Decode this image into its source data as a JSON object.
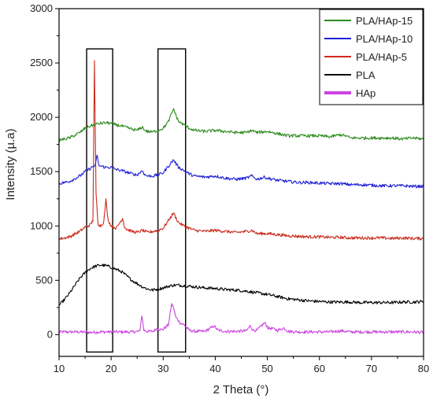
{
  "chart_data": {
    "type": "line",
    "title": "",
    "xlabel": "2 Theta (°)",
    "ylabel": "Intensity (µ.a)",
    "xlim": [
      10,
      80
    ],
    "ylim": [
      -200,
      3000
    ],
    "x_ticks": [
      10,
      20,
      30,
      40,
      50,
      60,
      70,
      80
    ],
    "y_ticks": [
      0,
      500,
      1000,
      1500,
      2000,
      2500,
      3000
    ],
    "legend_position": "top-right",
    "grid": false,
    "highlight_boxes": [
      {
        "x_range": [
          15.3,
          20.3
        ],
        "y_range": [
          -160,
          2630
        ]
      },
      {
        "x_range": [
          29.0,
          34.3
        ],
        "y_range": [
          -160,
          2630
        ]
      }
    ],
    "series": [
      {
        "name": "PLA/HAp-15",
        "color": "#2e8b1e",
        "points": [
          [
            10,
            1790
          ],
          [
            12,
            1810
          ],
          [
            14,
            1860
          ],
          [
            15,
            1900
          ],
          [
            16,
            1920
          ],
          [
            17,
            1935
          ],
          [
            18,
            1945
          ],
          [
            19,
            1950
          ],
          [
            20,
            1945
          ],
          [
            21,
            1930
          ],
          [
            22,
            1920
          ],
          [
            23,
            1905
          ],
          [
            24,
            1890
          ],
          [
            25,
            1880
          ],
          [
            26,
            1910
          ],
          [
            26.5,
            1880
          ],
          [
            27,
            1870
          ],
          [
            28,
            1865
          ],
          [
            29,
            1880
          ],
          [
            30,
            1900
          ],
          [
            31,
            1960
          ],
          [
            32,
            2080
          ],
          [
            32.5,
            2010
          ],
          [
            33,
            1960
          ],
          [
            34,
            1930
          ],
          [
            35,
            1900
          ],
          [
            36,
            1880
          ],
          [
            38,
            1870
          ],
          [
            40,
            1880
          ],
          [
            42,
            1870
          ],
          [
            44,
            1860
          ],
          [
            46,
            1860
          ],
          [
            47,
            1880
          ],
          [
            48,
            1860
          ],
          [
            50,
            1870
          ],
          [
            52,
            1850
          ],
          [
            54,
            1830
          ],
          [
            56,
            1830
          ],
          [
            58,
            1830
          ],
          [
            60,
            1830
          ],
          [
            62,
            1820
          ],
          [
            64,
            1840
          ],
          [
            65,
            1830
          ],
          [
            66,
            1810
          ],
          [
            68,
            1810
          ],
          [
            70,
            1810
          ],
          [
            72,
            1810
          ],
          [
            74,
            1810
          ],
          [
            76,
            1800
          ],
          [
            78,
            1810
          ],
          [
            80,
            1800
          ]
        ]
      },
      {
        "name": "PLA/HAp-10",
        "color": "#1f1fd6",
        "points": [
          [
            10,
            1390
          ],
          [
            12,
            1410
          ],
          [
            14,
            1460
          ],
          [
            15,
            1500
          ],
          [
            16,
            1530
          ],
          [
            17,
            1560
          ],
          [
            17.3,
            1660
          ],
          [
            17.6,
            1560
          ],
          [
            18,
            1550
          ],
          [
            19,
            1540
          ],
          [
            20,
            1540
          ],
          [
            21,
            1520
          ],
          [
            22,
            1510
          ],
          [
            23,
            1495
          ],
          [
            24,
            1480
          ],
          [
            25,
            1470
          ],
          [
            26,
            1510
          ],
          [
            26.5,
            1470
          ],
          [
            27,
            1460
          ],
          [
            28,
            1460
          ],
          [
            29,
            1470
          ],
          [
            30,
            1490
          ],
          [
            31,
            1550
          ],
          [
            32,
            1610
          ],
          [
            32.5,
            1570
          ],
          [
            33,
            1540
          ],
          [
            34,
            1510
          ],
          [
            35,
            1480
          ],
          [
            36,
            1460
          ],
          [
            38,
            1450
          ],
          [
            40,
            1460
          ],
          [
            42,
            1440
          ],
          [
            44,
            1430
          ],
          [
            46,
            1440
          ],
          [
            47,
            1460
          ],
          [
            48,
            1430
          ],
          [
            49.5,
            1450
          ],
          [
            50,
            1440
          ],
          [
            52,
            1420
          ],
          [
            54,
            1410
          ],
          [
            56,
            1400
          ],
          [
            58,
            1400
          ],
          [
            60,
            1395
          ],
          [
            62,
            1390
          ],
          [
            64,
            1390
          ],
          [
            66,
            1380
          ],
          [
            68,
            1380
          ],
          [
            70,
            1375
          ],
          [
            72,
            1370
          ],
          [
            74,
            1370
          ],
          [
            76,
            1370
          ],
          [
            78,
            1365
          ],
          [
            80,
            1365
          ]
        ]
      },
      {
        "name": "PLA/HAp-5",
        "color": "#cc2a1c",
        "points": [
          [
            10,
            880
          ],
          [
            12,
            900
          ],
          [
            14,
            950
          ],
          [
            15,
            990
          ],
          [
            16,
            1010
          ],
          [
            16.5,
            1050
          ],
          [
            16.8,
            2510
          ],
          [
            17.1,
            1300
          ],
          [
            17.5,
            1020
          ],
          [
            18,
            1000
          ],
          [
            18.6,
            1040
          ],
          [
            19.0,
            1240
          ],
          [
            19.4,
            1060
          ],
          [
            20,
            1000
          ],
          [
            21,
            980
          ],
          [
            22.2,
            1070
          ],
          [
            22.6,
            990
          ],
          [
            23,
            970
          ],
          [
            24,
            950
          ],
          [
            25,
            940
          ],
          [
            26,
            960
          ],
          [
            27,
            940
          ],
          [
            28,
            950
          ],
          [
            29,
            960
          ],
          [
            30,
            980
          ],
          [
            31,
            1050
          ],
          [
            32,
            1120
          ],
          [
            32.5,
            1070
          ],
          [
            33,
            1030
          ],
          [
            34,
            1000
          ],
          [
            35,
            980
          ],
          [
            36,
            960
          ],
          [
            38,
            950
          ],
          [
            40,
            960
          ],
          [
            42,
            950
          ],
          [
            44,
            940
          ],
          [
            46,
            950
          ],
          [
            47,
            960
          ],
          [
            48,
            930
          ],
          [
            50,
            930
          ],
          [
            52,
            920
          ],
          [
            54,
            910
          ],
          [
            56,
            905
          ],
          [
            58,
            900
          ],
          [
            60,
            900
          ],
          [
            62,
            895
          ],
          [
            64,
            895
          ],
          [
            66,
            890
          ],
          [
            68,
            890
          ],
          [
            70,
            890
          ],
          [
            72,
            890
          ],
          [
            74,
            885
          ],
          [
            76,
            890
          ],
          [
            78,
            885
          ],
          [
            80,
            885
          ]
        ]
      },
      {
        "name": "PLA",
        "color": "#000000",
        "points": [
          [
            10,
            270
          ],
          [
            11,
            320
          ],
          [
            12,
            380
          ],
          [
            13,
            450
          ],
          [
            14,
            520
          ],
          [
            15,
            570
          ],
          [
            16,
            610
          ],
          [
            17,
            630
          ],
          [
            18,
            640
          ],
          [
            19,
            635
          ],
          [
            20,
            620
          ],
          [
            21,
            600
          ],
          [
            22,
            580
          ],
          [
            23,
            540
          ],
          [
            24,
            500
          ],
          [
            25,
            470
          ],
          [
            26,
            440
          ],
          [
            27,
            420
          ],
          [
            28,
            410
          ],
          [
            29,
            420
          ],
          [
            30,
            430
          ],
          [
            31,
            445
          ],
          [
            32,
            455
          ],
          [
            33,
            455
          ],
          [
            34,
            450
          ],
          [
            35,
            445
          ],
          [
            36,
            440
          ],
          [
            38,
            430
          ],
          [
            40,
            425
          ],
          [
            42,
            415
          ],
          [
            44,
            410
          ],
          [
            46,
            400
          ],
          [
            48,
            385
          ],
          [
            50,
            370
          ],
          [
            52,
            350
          ],
          [
            54,
            330
          ],
          [
            56,
            320
          ],
          [
            58,
            310
          ],
          [
            60,
            305
          ],
          [
            62,
            300
          ],
          [
            64,
            300
          ],
          [
            66,
            300
          ],
          [
            68,
            295
          ],
          [
            70,
            295
          ],
          [
            72,
            295
          ],
          [
            74,
            295
          ],
          [
            76,
            300
          ],
          [
            78,
            300
          ],
          [
            80,
            305
          ]
        ]
      },
      {
        "name": "HAp",
        "color": "#cc44e0",
        "points": [
          [
            10,
            25
          ],
          [
            12,
            25
          ],
          [
            14,
            25
          ],
          [
            16,
            20
          ],
          [
            18,
            25
          ],
          [
            20,
            25
          ],
          [
            22,
            25
          ],
          [
            24,
            25
          ],
          [
            25.5,
            30
          ],
          [
            25.9,
            180
          ],
          [
            26.3,
            40
          ],
          [
            27,
            30
          ],
          [
            28,
            30
          ],
          [
            28.9,
            60
          ],
          [
            29.5,
            45
          ],
          [
            30,
            50
          ],
          [
            31,
            90
          ],
          [
            31.6,
            280
          ],
          [
            32,
            250
          ],
          [
            32.4,
            160
          ],
          [
            32.8,
            140
          ],
          [
            33.2,
            110
          ],
          [
            34,
            90
          ],
          [
            35,
            40
          ],
          [
            36,
            30
          ],
          [
            38,
            30
          ],
          [
            39.8,
            80
          ],
          [
            40.5,
            40
          ],
          [
            42,
            30
          ],
          [
            44,
            30
          ],
          [
            46,
            35
          ],
          [
            46.7,
            80
          ],
          [
            47.3,
            40
          ],
          [
            48,
            40
          ],
          [
            49.5,
            110
          ],
          [
            50.2,
            60
          ],
          [
            51,
            55
          ],
          [
            52,
            40
          ],
          [
            53.2,
            60
          ],
          [
            54,
            30
          ],
          [
            56,
            25
          ],
          [
            58,
            25
          ],
          [
            60,
            25
          ],
          [
            62,
            25
          ],
          [
            64,
            35
          ],
          [
            65,
            30
          ],
          [
            66,
            25
          ],
          [
            68,
            25
          ],
          [
            70,
            25
          ],
          [
            72,
            25
          ],
          [
            74,
            25
          ],
          [
            76,
            25
          ],
          [
            78,
            25
          ],
          [
            80,
            20
          ]
        ]
      }
    ]
  }
}
